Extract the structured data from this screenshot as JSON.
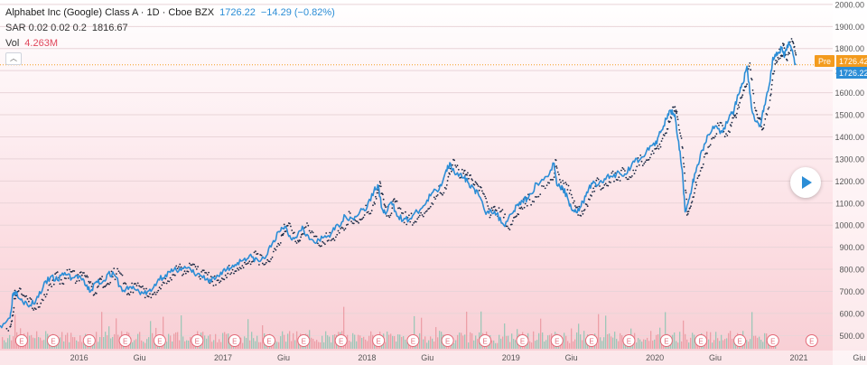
{
  "header": {
    "symbol_title": "Alphabet Inc (Google) Class A · 1D · Cboe BZX",
    "last_price": "1726.22",
    "change": "−14.29 (−0.82%)",
    "sar_label": "SAR 0.02 0.02 0.2",
    "sar_value": "1816.67",
    "vol_label": "Vol",
    "vol_value": "4.263M",
    "collapse_glyph": "︿"
  },
  "price_tags": {
    "pre_label": "Pre",
    "pre_value": "1726.42",
    "last_value": "1726.22"
  },
  "colors": {
    "price_line": "#2b8dd6",
    "sar_dots": "#1c2a44",
    "pre_tag": "#f39b1e",
    "last_tag": "#2b8dd6",
    "vol_up": "#7fc3ad",
    "vol_down": "#e88d97",
    "earnings": "#e36a78"
  },
  "icons": {
    "play": "play-icon",
    "collapse": "chevron-up-icon"
  },
  "chart_data": {
    "type": "line",
    "ylim": [
      440,
      2020
    ],
    "y_ticks": [
      "500.00",
      "600.00",
      "700.00",
      "800.00",
      "900.00",
      "1000.00",
      "1100.00",
      "1200.00",
      "1300.00",
      "1400.00",
      "1500.00",
      "1600.00",
      "1700.00",
      "1800.00",
      "1900.00",
      "2000.00"
    ],
    "x_ticks": [
      {
        "label": "2016",
        "t": 2016.0
      },
      {
        "label": "Giu",
        "t": 2016.42
      },
      {
        "label": "2017",
        "t": 2017.0
      },
      {
        "label": "Giu",
        "t": 2017.42
      },
      {
        "label": "2018",
        "t": 2018.0
      },
      {
        "label": "Giu",
        "t": 2018.42
      },
      {
        "label": "2019",
        "t": 2019.0
      },
      {
        "label": "Giu",
        "t": 2019.42
      },
      {
        "label": "2020",
        "t": 2020.0
      },
      {
        "label": "Giu",
        "t": 2020.42
      },
      {
        "label": "2021",
        "t": 2021.0
      },
      {
        "label": "Giu",
        "t": 2021.42
      }
    ],
    "earnings_marker": "E",
    "earnings_dates": [
      2015.6,
      2015.82,
      2016.07,
      2016.32,
      2016.56,
      2016.82,
      2017.08,
      2017.32,
      2017.56,
      2017.82,
      2018.08,
      2018.32,
      2018.56,
      2018.82,
      2019.08,
      2019.32,
      2019.56,
      2019.82,
      2020.08,
      2020.32,
      2020.59,
      2020.82,
      2021.09
    ],
    "series": [
      {
        "key": "price",
        "values": [
          [
            2015.45,
            545
          ],
          [
            2015.52,
            580
          ],
          [
            2015.54,
            690
          ],
          [
            2015.56,
            700
          ],
          [
            2015.6,
            665
          ],
          [
            2015.65,
            630
          ],
          [
            2015.7,
            660
          ],
          [
            2015.75,
            720
          ],
          [
            2015.8,
            765
          ],
          [
            2015.85,
            750
          ],
          [
            2015.9,
            785
          ],
          [
            2015.95,
            760
          ],
          [
            2016.0,
            770
          ],
          [
            2016.04,
            730
          ],
          [
            2016.08,
            700
          ],
          [
            2016.12,
            745
          ],
          [
            2016.16,
            740
          ],
          [
            2016.2,
            780
          ],
          [
            2016.25,
            770
          ],
          [
            2016.3,
            700
          ],
          [
            2016.35,
            720
          ],
          [
            2016.4,
            705
          ],
          [
            2016.45,
            690
          ],
          [
            2016.5,
            700
          ],
          [
            2016.55,
            755
          ],
          [
            2016.6,
            775
          ],
          [
            2016.65,
            790
          ],
          [
            2016.7,
            805
          ],
          [
            2016.75,
            805
          ],
          [
            2016.8,
            780
          ],
          [
            2016.85,
            770
          ],
          [
            2016.9,
            740
          ],
          [
            2016.95,
            760
          ],
          [
            2017.0,
            795
          ],
          [
            2017.05,
            805
          ],
          [
            2017.1,
            830
          ],
          [
            2017.15,
            850
          ],
          [
            2017.2,
            855
          ],
          [
            2017.25,
            835
          ],
          [
            2017.3,
            860
          ],
          [
            2017.35,
            930
          ],
          [
            2017.4,
            975
          ],
          [
            2017.43,
            995
          ],
          [
            2017.47,
            940
          ],
          [
            2017.52,
            960
          ],
          [
            2017.55,
            995
          ],
          [
            2017.6,
            935
          ],
          [
            2017.65,
            920
          ],
          [
            2017.7,
            945
          ],
          [
            2017.75,
            960
          ],
          [
            2017.8,
            1000
          ],
          [
            2017.85,
            1040
          ],
          [
            2017.9,
            1030
          ],
          [
            2017.95,
            1060
          ],
          [
            2018.0,
            1080
          ],
          [
            2018.05,
            1160
          ],
          [
            2018.08,
            1175
          ],
          [
            2018.1,
            1080
          ],
          [
            2018.13,
            1050
          ],
          [
            2018.17,
            1105
          ],
          [
            2018.2,
            1060
          ],
          [
            2018.25,
            1020
          ],
          [
            2018.3,
            1030
          ],
          [
            2018.35,
            1060
          ],
          [
            2018.4,
            1090
          ],
          [
            2018.45,
            1145
          ],
          [
            2018.5,
            1160
          ],
          [
            2018.55,
            1250
          ],
          [
            2018.58,
            1280
          ],
          [
            2018.62,
            1230
          ],
          [
            2018.67,
            1215
          ],
          [
            2018.7,
            1195
          ],
          [
            2018.74,
            1170
          ],
          [
            2018.78,
            1130
          ],
          [
            2018.82,
            1060
          ],
          [
            2018.86,
            1070
          ],
          [
            2018.9,
            1050
          ],
          [
            2018.95,
            1000
          ],
          [
            2019.0,
            1050
          ],
          [
            2019.04,
            1090
          ],
          [
            2019.08,
            1110
          ],
          [
            2019.12,
            1120
          ],
          [
            2019.18,
            1190
          ],
          [
            2019.25,
            1220
          ],
          [
            2019.3,
            1280
          ],
          [
            2019.32,
            1180
          ],
          [
            2019.36,
            1170
          ],
          [
            2019.4,
            1110
          ],
          [
            2019.44,
            1060
          ],
          [
            2019.48,
            1080
          ],
          [
            2019.52,
            1130
          ],
          [
            2019.56,
            1190
          ],
          [
            2019.6,
            1180
          ],
          [
            2019.65,
            1210
          ],
          [
            2019.7,
            1220
          ],
          [
            2019.75,
            1240
          ],
          [
            2019.8,
            1230
          ],
          [
            2019.85,
            1290
          ],
          [
            2019.9,
            1300
          ],
          [
            2019.95,
            1350
          ],
          [
            2020.0,
            1360
          ],
          [
            2020.04,
            1420
          ],
          [
            2020.08,
            1480
          ],
          [
            2020.11,
            1520
          ],
          [
            2020.14,
            1500
          ],
          [
            2020.16,
            1390
          ],
          [
            2020.19,
            1250
          ],
          [
            2020.21,
            1060
          ],
          [
            2020.23,
            1100
          ],
          [
            2020.26,
            1180
          ],
          [
            2020.29,
            1260
          ],
          [
            2020.33,
            1340
          ],
          [
            2020.37,
            1410
          ],
          [
            2020.42,
            1450
          ],
          [
            2020.47,
            1420
          ],
          [
            2020.52,
            1500
          ],
          [
            2020.55,
            1520
          ],
          [
            2020.58,
            1590
          ],
          [
            2020.61,
            1640
          ],
          [
            2020.64,
            1720
          ],
          [
            2020.67,
            1540
          ],
          [
            2020.7,
            1470
          ],
          [
            2020.73,
            1450
          ],
          [
            2020.76,
            1540
          ],
          [
            2020.8,
            1650
          ],
          [
            2020.82,
            1760
          ],
          [
            2020.85,
            1770
          ],
          [
            2020.88,
            1800
          ],
          [
            2020.9,
            1760
          ],
          [
            2020.93,
            1830
          ],
          [
            2020.96,
            1775
          ],
          [
            2020.98,
            1726
          ]
        ]
      }
    ]
  }
}
